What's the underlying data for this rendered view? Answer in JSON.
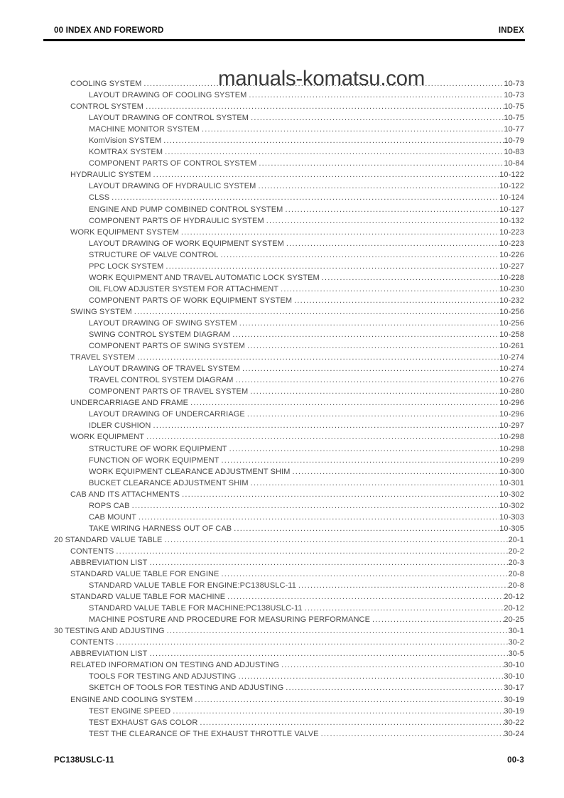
{
  "header": {
    "left": "00 INDEX AND FOREWORD",
    "right": "INDEX"
  },
  "watermark": "manuals-komatsu.com",
  "footer": {
    "left": "PC138USLC-11",
    "right": "00-3"
  },
  "colors": {
    "page_bg": "#ffffff",
    "text": "#474747",
    "heading_text": "#111111",
    "watermark_text": "#3a3a3a",
    "rule": "#000000"
  },
  "toc": [
    {
      "label": "COOLING SYSTEM",
      "page": "10-73",
      "level": 1
    },
    {
      "label": "LAYOUT DRAWING OF COOLING SYSTEM",
      "page": "10-73",
      "level": 2
    },
    {
      "label": "CONTROL SYSTEM",
      "page": "10-75",
      "level": 1
    },
    {
      "label": "LAYOUT DRAWING OF CONTROL SYSTEM",
      "page": "10-75",
      "level": 2
    },
    {
      "label": "MACHINE MONITOR SYSTEM",
      "page": "10-77",
      "level": 2
    },
    {
      "label": "KomVision SYSTEM",
      "page": "10-79",
      "level": 2
    },
    {
      "label": "KOMTRAX SYSTEM",
      "page": "10-83",
      "level": 2
    },
    {
      "label": "COMPONENT PARTS OF CONTROL SYSTEM",
      "page": "10-84",
      "level": 2
    },
    {
      "label": "HYDRAULIC SYSTEM",
      "page": "10-122",
      "level": 1
    },
    {
      "label": "LAYOUT DRAWING OF HYDRAULIC SYSTEM",
      "page": "10-122",
      "level": 2
    },
    {
      "label": "CLSS",
      "page": "10-124",
      "level": 2
    },
    {
      "label": "ENGINE AND PUMP COMBINED CONTROL SYSTEM",
      "page": "10-127",
      "level": 2
    },
    {
      "label": "COMPONENT PARTS OF HYDRAULIC SYSTEM",
      "page": "10-132",
      "level": 2
    },
    {
      "label": "WORK EQUIPMENT SYSTEM",
      "page": "10-223",
      "level": 1
    },
    {
      "label": "LAYOUT DRAWING OF WORK EQUIPMENT SYSTEM",
      "page": "10-223",
      "level": 2
    },
    {
      "label": "STRUCTURE OF VALVE CONTROL",
      "page": "10-226",
      "level": 2
    },
    {
      "label": "PPC LOCK SYSTEM",
      "page": "10-227",
      "level": 2
    },
    {
      "label": "WORK EQUIPMENT AND TRAVEL AUTOMATIC LOCK SYSTEM",
      "page": "10-228",
      "level": 2
    },
    {
      "label": "OIL FLOW ADJUSTER SYSTEM FOR ATTACHMENT",
      "page": "10-230",
      "level": 2
    },
    {
      "label": "COMPONENT PARTS OF WORK EQUIPMENT SYSTEM",
      "page": "10-232",
      "level": 2
    },
    {
      "label": "SWING SYSTEM",
      "page": "10-256",
      "level": 1
    },
    {
      "label": "LAYOUT DRAWING OF SWING SYSTEM",
      "page": "10-256",
      "level": 2
    },
    {
      "label": "SWING CONTROL SYSTEM DIAGRAM",
      "page": "10-258",
      "level": 2
    },
    {
      "label": "COMPONENT PARTS OF SWING SYSTEM",
      "page": "10-261",
      "level": 2
    },
    {
      "label": "TRAVEL SYSTEM",
      "page": "10-274",
      "level": 1
    },
    {
      "label": "LAYOUT DRAWING OF TRAVEL SYSTEM",
      "page": "10-274",
      "level": 2
    },
    {
      "label": "TRAVEL CONTROL SYSTEM DIAGRAM",
      "page": "10-276",
      "level": 2
    },
    {
      "label": "COMPONENT PARTS OF TRAVEL SYSTEM",
      "page": "10-280",
      "level": 2
    },
    {
      "label": "UNDERCARRIAGE AND FRAME",
      "page": "10-296",
      "level": 1
    },
    {
      "label": "LAYOUT DRAWING OF UNDERCARRIAGE",
      "page": "10-296",
      "level": 2
    },
    {
      "label": "IDLER CUSHION",
      "page": "10-297",
      "level": 2
    },
    {
      "label": "WORK EQUIPMENT",
      "page": "10-298",
      "level": 1
    },
    {
      "label": "STRUCTURE OF WORK EQUIPMENT",
      "page": "10-298",
      "level": 2
    },
    {
      "label": "FUNCTION OF WORK EQUIPMENT",
      "page": "10-299",
      "level": 2
    },
    {
      "label": "WORK EQUIPMENT CLEARANCE ADJUSTMENT SHIM",
      "page": "10-300",
      "level": 2
    },
    {
      "label": "BUCKET CLEARANCE ADJUSTMENT SHIM",
      "page": "10-301",
      "level": 2
    },
    {
      "label": "CAB AND ITS ATTACHMENTS",
      "page": "10-302",
      "level": 1
    },
    {
      "label": "ROPS CAB",
      "page": "10-302",
      "level": 2
    },
    {
      "label": "CAB MOUNT",
      "page": "10-303",
      "level": 2
    },
    {
      "label": "TAKE WIRING HARNESS OUT OF CAB",
      "page": "10-305",
      "level": 2
    },
    {
      "label": "20 STANDARD VALUE TABLE",
      "page": "20-1",
      "level": 0
    },
    {
      "label": "CONTENTS",
      "page": "20-2",
      "level": 1
    },
    {
      "label": "ABBREVIATION LIST",
      "page": "20-3",
      "level": 1
    },
    {
      "label": "STANDARD VALUE TABLE FOR ENGINE",
      "page": "20-8",
      "level": 1
    },
    {
      "label": "STANDARD VALUE TABLE FOR ENGINE:PC138USLC-11",
      "page": "20-8",
      "level": 2
    },
    {
      "label": "STANDARD VALUE TABLE FOR MACHINE",
      "page": "20-12",
      "level": 1
    },
    {
      "label": "STANDARD VALUE TABLE FOR MACHINE:PC138USLC-11",
      "page": "20-12",
      "level": 2
    },
    {
      "label": "MACHINE POSTURE AND PROCEDURE FOR MEASURING PERFORMANCE",
      "page": "20-25",
      "level": 2
    },
    {
      "label": "30 TESTING AND ADJUSTING",
      "page": "30-1",
      "level": 0
    },
    {
      "label": "CONTENTS",
      "page": "30-2",
      "level": 1
    },
    {
      "label": "ABBREVIATION LIST",
      "page": "30-5",
      "level": 1
    },
    {
      "label": "RELATED INFORMATION ON TESTING AND ADJUSTING",
      "page": "30-10",
      "level": 1
    },
    {
      "label": "TOOLS FOR TESTING AND ADJUSTING",
      "page": "30-10",
      "level": 2
    },
    {
      "label": "SKETCH OF TOOLS FOR TESTING AND ADJUSTING",
      "page": "30-17",
      "level": 2
    },
    {
      "label": "ENGINE AND COOLING SYSTEM",
      "page": "30-19",
      "level": 1
    },
    {
      "label": "TEST ENGINE SPEED",
      "page": "30-19",
      "level": 2
    },
    {
      "label": "TEST EXHAUST GAS COLOR",
      "page": "30-22",
      "level": 2
    },
    {
      "label": "TEST THE CLEARANCE OF THE EXHAUST THROTTLE VALVE",
      "page": "30-24",
      "level": 2
    }
  ]
}
